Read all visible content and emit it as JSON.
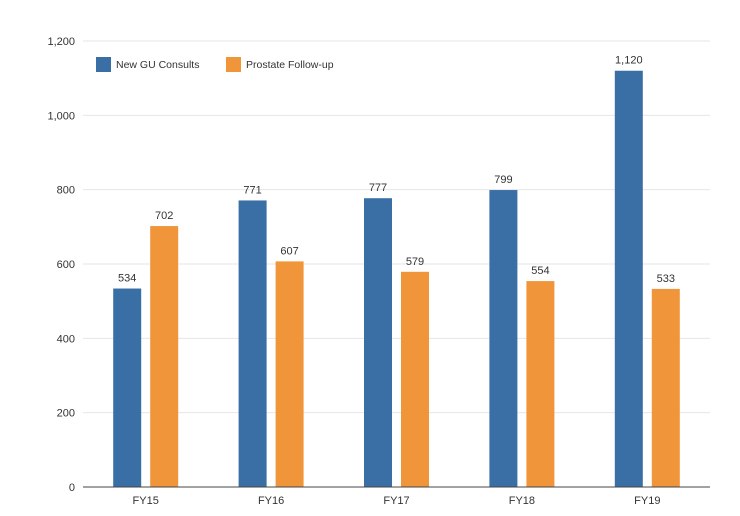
{
  "chart_data": {
    "type": "bar",
    "title": "",
    "xlabel": "",
    "ylabel": "",
    "categories": [
      "FY15",
      "FY16",
      "FY17",
      "FY18",
      "FY19"
    ],
    "series": [
      {
        "name": "New GU Consults",
        "values": [
          534,
          771,
          777,
          799,
          1120
        ],
        "labels": [
          "534",
          "771",
          "777",
          "799",
          "1,120"
        ],
        "color": "#3a6fa6"
      },
      {
        "name": "Prostate Follow-up",
        "values": [
          702,
          607,
          579,
          554,
          533
        ],
        "labels": [
          "702",
          "607",
          "579",
          "554",
          "533"
        ],
        "color": "#f0953a"
      }
    ],
    "ylim": [
      0,
      1200
    ],
    "yticks": [
      0,
      200,
      400,
      600,
      800,
      1000,
      1200
    ],
    "ytick_labels": [
      "0",
      "200",
      "400",
      "600",
      "800",
      "1,000",
      "1,200"
    ],
    "grid": true,
    "legend_position": "top-left"
  }
}
